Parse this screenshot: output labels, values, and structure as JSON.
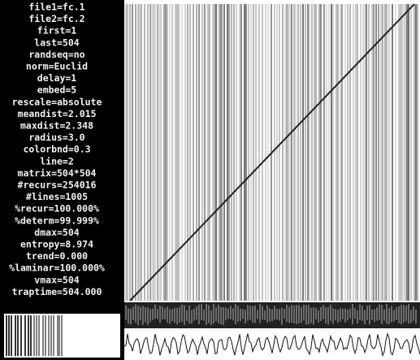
{
  "parameters": [
    "file1=fc.1",
    "file2=fc.2",
    "first=1",
    "last=504",
    "randseq=no",
    "norm=Euclid",
    "delay=1",
    "embed=5",
    "rescale=absolute",
    "meandist=2.015",
    "maxdist=2.348",
    "radius=3.0",
    "colorbnd=0.3",
    "line=2",
    "matrix=504*504",
    "#recurs=254016",
    "#lines=1005",
    "%recur=100.000%",
    "%determ=99.999%",
    "dmax=504",
    "entropy=8.974",
    "trend=0.000",
    "%laminar=100.000%",
    "vmax=504",
    "traptime=504.000"
  ]
}
